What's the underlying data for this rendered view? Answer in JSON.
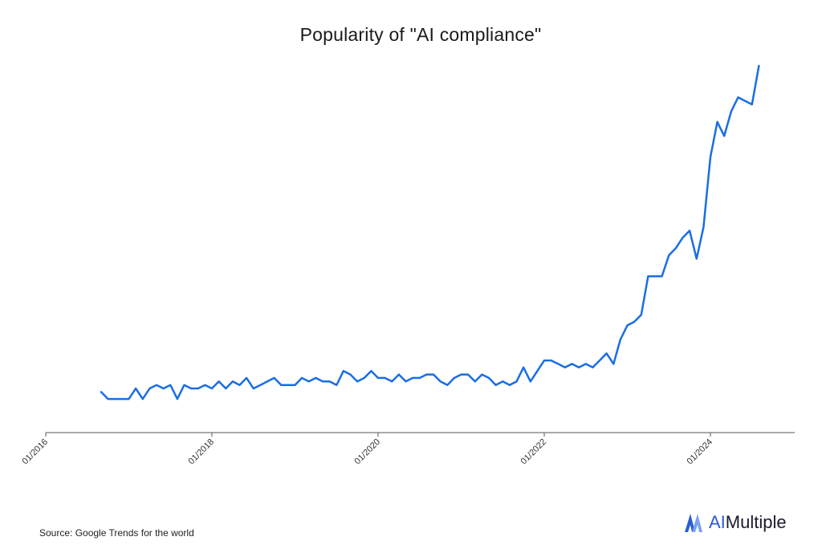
{
  "title": "Popularity of \"AI compliance\"",
  "source_note": "Source: Google Trends for the world",
  "brand": {
    "prefix": "AI",
    "suffix": "Multiple"
  },
  "colors": {
    "line": "#1a6ee3",
    "axis": "#555555",
    "brand_accent": "#2c5bd8"
  },
  "chart_data": {
    "type": "line",
    "title": "Popularity of \"AI compliance\"",
    "xlabel": "",
    "ylabel": "",
    "x_ticks": [
      "01/2016",
      "01/2018",
      "01/2020",
      "01/2022",
      "01/2024"
    ],
    "xlim": [
      "2016-01",
      "2024-12"
    ],
    "ylim": [
      0,
      100
    ],
    "grid": false,
    "series": [
      {
        "values": [
          [
            "2016-09",
            7
          ],
          [
            "2016-10",
            5
          ],
          [
            "2016-11",
            5
          ],
          [
            "2016-12",
            5
          ],
          [
            "2017-01",
            5
          ],
          [
            "2017-02",
            8
          ],
          [
            "2017-03",
            5
          ],
          [
            "2017-04",
            8
          ],
          [
            "2017-05",
            9
          ],
          [
            "2017-06",
            8
          ],
          [
            "2017-07",
            9
          ],
          [
            "2017-08",
            5
          ],
          [
            "2017-09",
            9
          ],
          [
            "2017-10",
            8
          ],
          [
            "2017-11",
            8
          ],
          [
            "2017-12",
            9
          ],
          [
            "2018-01",
            8
          ],
          [
            "2018-02",
            10
          ],
          [
            "2018-03",
            8
          ],
          [
            "2018-04",
            10
          ],
          [
            "2018-05",
            9
          ],
          [
            "2018-06",
            11
          ],
          [
            "2018-07",
            8
          ],
          [
            "2018-08",
            9
          ],
          [
            "2018-09",
            10
          ],
          [
            "2018-10",
            11
          ],
          [
            "2018-11",
            9
          ],
          [
            "2018-12",
            9
          ],
          [
            "2019-01",
            9
          ],
          [
            "2019-02",
            11
          ],
          [
            "2019-03",
            10
          ],
          [
            "2019-04",
            11
          ],
          [
            "2019-05",
            10
          ],
          [
            "2019-06",
            10
          ],
          [
            "2019-07",
            9
          ],
          [
            "2019-08",
            13
          ],
          [
            "2019-09",
            12
          ],
          [
            "2019-10",
            10
          ],
          [
            "2019-11",
            11
          ],
          [
            "2019-12",
            13
          ],
          [
            "2020-01",
            11
          ],
          [
            "2020-02",
            11
          ],
          [
            "2020-03",
            10
          ],
          [
            "2020-04",
            12
          ],
          [
            "2020-05",
            10
          ],
          [
            "2020-06",
            11
          ],
          [
            "2020-07",
            11
          ],
          [
            "2020-08",
            12
          ],
          [
            "2020-09",
            12
          ],
          [
            "2020-10",
            10
          ],
          [
            "2020-11",
            9
          ],
          [
            "2020-12",
            11
          ],
          [
            "2021-01",
            12
          ],
          [
            "2021-02",
            12
          ],
          [
            "2021-03",
            10
          ],
          [
            "2021-04",
            12
          ],
          [
            "2021-05",
            11
          ],
          [
            "2021-06",
            9
          ],
          [
            "2021-07",
            10
          ],
          [
            "2021-08",
            9
          ],
          [
            "2021-09",
            10
          ],
          [
            "2021-10",
            14
          ],
          [
            "2021-11",
            10
          ],
          [
            "2021-12",
            13
          ],
          [
            "2022-01",
            16
          ],
          [
            "2022-02",
            16
          ],
          [
            "2022-03",
            15
          ],
          [
            "2022-04",
            14
          ],
          [
            "2022-05",
            15
          ],
          [
            "2022-06",
            14
          ],
          [
            "2022-07",
            15
          ],
          [
            "2022-08",
            14
          ],
          [
            "2022-09",
            16
          ],
          [
            "2022-10",
            18
          ],
          [
            "2022-11",
            15
          ],
          [
            "2022-12",
            22
          ],
          [
            "2023-01",
            26
          ],
          [
            "2023-02",
            27
          ],
          [
            "2023-03",
            29
          ],
          [
            "2023-04",
            40
          ],
          [
            "2023-05",
            40
          ],
          [
            "2023-06",
            40
          ],
          [
            "2023-07",
            46
          ],
          [
            "2023-08",
            48
          ],
          [
            "2023-09",
            51
          ],
          [
            "2023-10",
            53
          ],
          [
            "2023-11",
            45
          ],
          [
            "2023-12",
            54
          ],
          [
            "2024-01",
            74
          ],
          [
            "2024-02",
            84
          ],
          [
            "2024-03",
            80
          ],
          [
            "2024-04",
            87
          ],
          [
            "2024-05",
            91
          ],
          [
            "2024-06",
            90
          ],
          [
            "2024-07",
            89
          ],
          [
            "2024-08",
            100
          ]
        ]
      }
    ]
  }
}
